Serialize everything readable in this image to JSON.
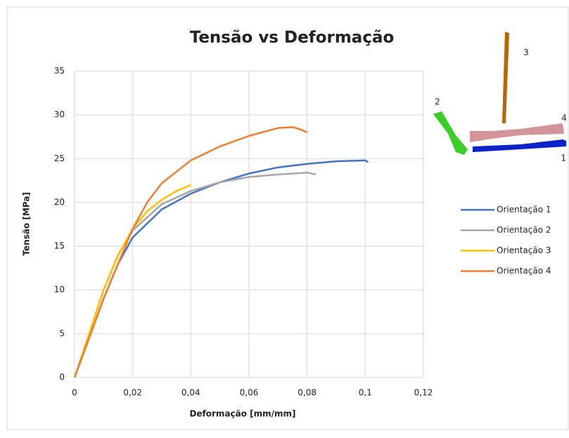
{
  "chart_data": {
    "type": "line",
    "title": "Tensão vs Deformação",
    "x_label": "Deformação [mm/mm]",
    "y_label": "Tensão [MPa]",
    "xlim": [
      0,
      0.12
    ],
    "ylim": [
      0,
      35
    ],
    "xticks": [
      0,
      {
        "value": 0.02,
        "label": "0,02"
      },
      {
        "value": 0.04,
        "label": "0,04"
      },
      {
        "value": 0.06,
        "label": "0,06"
      },
      {
        "value": 0.08,
        "label": "0,08"
      },
      {
        "value": 0.1,
        "label": "0,1"
      },
      {
        "value": 0.12,
        "label": "0,12"
      }
    ],
    "yticks": [
      0,
      5,
      10,
      15,
      20,
      25,
      30,
      35
    ],
    "grid": true,
    "legend": "right",
    "series": [
      {
        "name": "Orientação 1",
        "color": "#4472c4",
        "x": [
          0,
          0.005,
          0.01,
          0.015,
          0.02,
          0.03,
          0.04,
          0.05,
          0.06,
          0.07,
          0.08,
          0.09,
          0.1,
          0.101
        ],
        "values": [
          0,
          4.5,
          9,
          13,
          16,
          19.2,
          21,
          22.3,
          23.3,
          24,
          24.4,
          24.7,
          24.8,
          24.6
        ]
      },
      {
        "name": "Orientação 2",
        "color": "#a5a5a5",
        "x": [
          0,
          0.005,
          0.01,
          0.015,
          0.02,
          0.03,
          0.04,
          0.05,
          0.06,
          0.07,
          0.08,
          0.083
        ],
        "values": [
          0,
          5,
          10,
          14,
          16.8,
          19.8,
          21.3,
          22.3,
          22.9,
          23.2,
          23.4,
          23.2
        ]
      },
      {
        "name": "Orientação 3",
        "color": "#ffc000",
        "x": [
          0,
          0.005,
          0.01,
          0.015,
          0.02,
          0.025,
          0.03,
          0.035,
          0.04
        ],
        "values": [
          0,
          5,
          10,
          14,
          17,
          19,
          20.3,
          21.3,
          22
        ]
      },
      {
        "name": "Orientação 4",
        "color": "#ed7d31",
        "x": [
          0,
          0.005,
          0.01,
          0.015,
          0.02,
          0.025,
          0.03,
          0.04,
          0.05,
          0.06,
          0.07,
          0.075,
          0.078,
          0.08
        ],
        "values": [
          0,
          4.5,
          9,
          13,
          17,
          20,
          22.2,
          24.8,
          26.4,
          27.6,
          28.5,
          28.6,
          28.3,
          28
        ]
      }
    ],
    "annotations": [
      "1",
      "2",
      "3",
      "4"
    ]
  }
}
